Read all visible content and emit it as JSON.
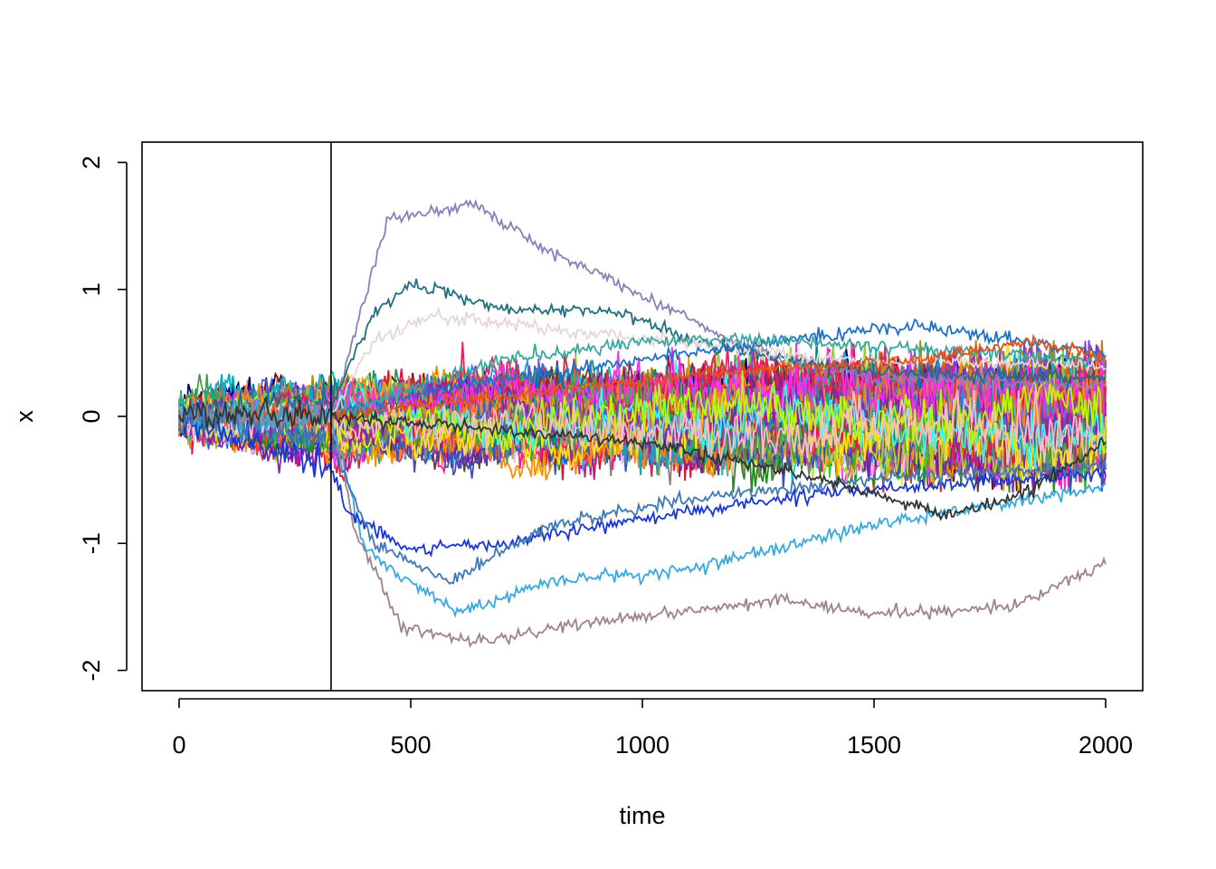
{
  "chart_data": {
    "type": "line",
    "title": "",
    "xlabel": "time",
    "ylabel": "x",
    "xlim": [
      -80,
      2080
    ],
    "ylim": [
      -2.16,
      2.16
    ],
    "x_ticks": [
      0,
      500,
      1000,
      1500,
      2000
    ],
    "x_tick_labels": [
      "0",
      "500",
      "1000",
      "1500",
      "2000"
    ],
    "y_ticks": [
      -2,
      -1,
      0,
      1,
      2
    ],
    "y_tick_labels": [
      "-2",
      "-1",
      "0",
      "1",
      "2"
    ],
    "grid": false,
    "legend": "none",
    "vline_x": 328,
    "n_steps": 2000,
    "pre_break_band": [
      -0.4,
      0.3
    ],
    "outlier_series": [
      {
        "color": "#8c7fb8",
        "keypoints": [
          [
            0,
            0
          ],
          [
            328,
            0
          ],
          [
            450,
            1.55
          ],
          [
            630,
            1.68
          ],
          [
            800,
            1.3
          ],
          [
            1000,
            0.95
          ],
          [
            1250,
            0.5
          ],
          [
            1500,
            0.3
          ],
          [
            2000,
            0.25
          ]
        ]
      },
      {
        "color": "#1f6f80",
        "keypoints": [
          [
            0,
            0
          ],
          [
            328,
            0.1
          ],
          [
            420,
            0.8
          ],
          [
            500,
            1.05
          ],
          [
            700,
            0.85
          ],
          [
            950,
            0.82
          ],
          [
            1150,
            0.55
          ],
          [
            1500,
            0.35
          ],
          [
            2000,
            0.3
          ]
        ]
      },
      {
        "color": "#e8d6d6",
        "keypoints": [
          [
            0,
            0
          ],
          [
            328,
            0
          ],
          [
            420,
            0.6
          ],
          [
            550,
            0.8
          ],
          [
            800,
            0.68
          ],
          [
            1100,
            0.58
          ],
          [
            1400,
            0.45
          ],
          [
            2000,
            0.4
          ]
        ]
      },
      {
        "color": "#1e70c8",
        "keypoints": [
          [
            0,
            0
          ],
          [
            328,
            0
          ],
          [
            600,
            0.25
          ],
          [
            1000,
            0.45
          ],
          [
            1300,
            0.6
          ],
          [
            1600,
            0.72
          ],
          [
            1800,
            0.6
          ],
          [
            2000,
            0.5
          ]
        ]
      },
      {
        "color": "#38a89d",
        "keypoints": [
          [
            0,
            0
          ],
          [
            328,
            0
          ],
          [
            700,
            0.45
          ],
          [
            1000,
            0.58
          ],
          [
            1200,
            0.62
          ],
          [
            1500,
            0.55
          ],
          [
            2000,
            0.45
          ]
        ]
      },
      {
        "color": "#e8501a",
        "keypoints": [
          [
            0,
            0
          ],
          [
            328,
            0
          ],
          [
            800,
            0.2
          ],
          [
            1200,
            0.35
          ],
          [
            1600,
            0.45
          ],
          [
            1850,
            0.6
          ],
          [
            2000,
            0.45
          ]
        ]
      },
      {
        "color": "#a0818f",
        "keypoints": [
          [
            0,
            0
          ],
          [
            328,
            0
          ],
          [
            380,
            -0.9
          ],
          [
            480,
            -1.65
          ],
          [
            630,
            -1.78
          ],
          [
            900,
            -1.62
          ],
          [
            1300,
            -1.45
          ],
          [
            1500,
            -1.55
          ],
          [
            1800,
            -1.5
          ],
          [
            2000,
            -1.15
          ]
        ]
      },
      {
        "color": "#38a9de",
        "keypoints": [
          [
            0,
            0
          ],
          [
            328,
            0
          ],
          [
            400,
            -1.05
          ],
          [
            600,
            -1.55
          ],
          [
            800,
            -1.3
          ],
          [
            1100,
            -1.2
          ],
          [
            1500,
            -0.85
          ],
          [
            2000,
            -0.55
          ]
        ]
      },
      {
        "color": "#1a35d9",
        "keypoints": [
          [
            0,
            0
          ],
          [
            328,
            -0.4
          ],
          [
            360,
            -0.75
          ],
          [
            500,
            -1.05
          ],
          [
            700,
            -1.0
          ],
          [
            1000,
            -0.8
          ],
          [
            1400,
            -0.6
          ],
          [
            2000,
            -0.45
          ]
        ]
      },
      {
        "color": "#3f78b5",
        "keypoints": [
          [
            0,
            0
          ],
          [
            328,
            -0.2
          ],
          [
            420,
            -1.0
          ],
          [
            580,
            -1.3
          ],
          [
            800,
            -0.85
          ],
          [
            1100,
            -0.65
          ],
          [
            1500,
            -0.5
          ],
          [
            2000,
            -0.4
          ]
        ]
      },
      {
        "color": "#333333",
        "keypoints": [
          [
            0,
            0
          ],
          [
            328,
            0
          ],
          [
            1000,
            -0.2
          ],
          [
            1400,
            -0.5
          ],
          [
            1650,
            -0.78
          ],
          [
            1800,
            -0.65
          ],
          [
            2000,
            -0.2
          ]
        ]
      }
    ]
  },
  "palette": [
    "#e6194b",
    "#3cb44b",
    "#ffe119",
    "#4363d8",
    "#f58231",
    "#911eb4",
    "#46f0f0",
    "#f032e6",
    "#bcf60c",
    "#fabebe",
    "#008080",
    "#e6beff",
    "#9a6324",
    "#800000",
    "#aaffc3",
    "#808000",
    "#000075",
    "#808080",
    "#ff4500",
    "#1e90ff",
    "#32cd32",
    "#ff1493",
    "#00ced1",
    "#8a2be2",
    "#ff8c00",
    "#2e8b57",
    "#dc143c",
    "#4682b4",
    "#9acd32",
    "#c71585",
    "#20b2aa",
    "#b8860b",
    "#6a5acd",
    "#228b22",
    "#d2691e",
    "#00bfff",
    "#9932cc",
    "#ff6347",
    "#3f51b5",
    "#8bc34a",
    "#ad1457",
    "#00897b",
    "#5d4037",
    "#7b1fa2",
    "#0277bd",
    "#c0ca33",
    "#e91e63",
    "#00acc1",
    "#43a047",
    "#fb8c00"
  ]
}
